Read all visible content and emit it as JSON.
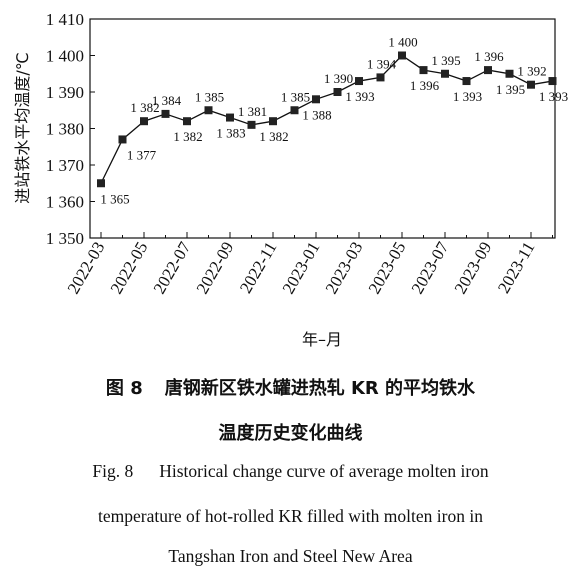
{
  "chart_data": {
    "type": "line",
    "ylabel": "进站铁水平均温度/℃",
    "xlabel": "年–月",
    "ylim": [
      1350,
      1410
    ],
    "yticks": [
      "1 350",
      "1 360",
      "1 370",
      "1 380",
      "1 390",
      "1 400",
      "1 410"
    ],
    "ytick_values": [
      1350,
      1360,
      1370,
      1380,
      1390,
      1400,
      1410
    ],
    "xtick_labels": [
      "2022-03",
      "2022-05",
      "2022-07",
      "2022-09",
      "2022-11",
      "2023-01",
      "2023-03",
      "2023-05",
      "2023-07",
      "2023-09",
      "2023-11"
    ],
    "x": [
      "2022-03",
      "2022-04",
      "2022-05",
      "2022-06",
      "2022-07",
      "2022-08",
      "2022-09",
      "2022-10",
      "2022-11",
      "2022-12",
      "2023-01",
      "2023-02",
      "2023-03",
      "2023-04",
      "2023-05",
      "2023-06",
      "2023-07",
      "2023-08",
      "2023-09",
      "2023-10",
      "2023-11",
      "2023-12"
    ],
    "values": [
      1365,
      1377,
      1382,
      1384,
      1382,
      1385,
      1383,
      1381,
      1382,
      1385,
      1388,
      1390,
      1393,
      1394,
      1400,
      1396,
      1395,
      1393,
      1396,
      1395,
      1392,
      1393
    ],
    "labels": [
      "1 365",
      "1 377",
      "1 382",
      "1 384",
      "1 382",
      "1 385",
      "1 383",
      "1 381",
      "1 382",
      "1 385",
      "1 388",
      "1 390",
      "1 393",
      "1 394",
      "1 400",
      "1 396",
      "1 395",
      "1 393",
      "1 396",
      "1 395",
      "1 392",
      "1 393"
    ],
    "label_positions": [
      "below",
      "below",
      "above",
      "above",
      "below",
      "above",
      "below",
      "above",
      "below",
      "above",
      "below",
      "above",
      "below",
      "above",
      "above",
      "below",
      "above",
      "below",
      "above",
      "below",
      "above",
      "below"
    ],
    "grid": false,
    "marker": "square",
    "line_color": "#111111"
  },
  "caption": {
    "cn_fig": "图 8",
    "cn_line1": "唐钢新区铁水罐进热轧 KR 的平均铁水",
    "cn_line2": "温度历史变化曲线",
    "en_fig": "Fig. 8",
    "en_line1": "Historical change curve of average molten iron",
    "en_line2": "temperature of hot-rolled KR filled with molten iron in",
    "en_line3": "Tangshan Iron and Steel New Area"
  }
}
